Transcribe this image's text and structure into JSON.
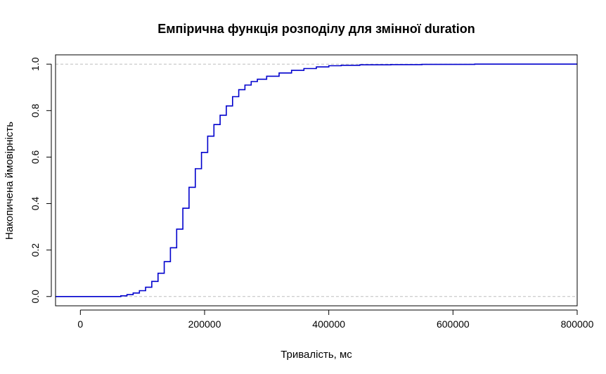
{
  "chart_data": {
    "type": "line",
    "title": "Емпірична функція розподілу для змінної duration",
    "xlabel": "Тривалість, мс",
    "ylabel": "Накопичена ймовірність",
    "xlim": [
      -40000,
      800000
    ],
    "ylim": [
      -0.04,
      1.04
    ],
    "x_ticks": [
      0,
      200000,
      400000,
      600000,
      800000
    ],
    "x_tick_labels": [
      "0",
      "200000",
      "400000",
      "600000",
      "800000"
    ],
    "y_ticks": [
      0.0,
      0.2,
      0.4,
      0.6,
      0.8,
      1.0
    ],
    "y_tick_labels": [
      "0.0",
      "0.2",
      "0.4",
      "0.6",
      "0.8",
      "1.0"
    ],
    "reference_lines": [
      0,
      1
    ],
    "grid": false,
    "line_color": "#0000cd",
    "reference_line_color": "#bebebe",
    "series": [
      {
        "x": [
          -40000,
          0,
          50000,
          65000,
          75000,
          85000,
          95000,
          105000,
          115000,
          125000,
          135000,
          145000,
          155000,
          165000,
          175000,
          185000,
          195000,
          205000,
          215000,
          225000,
          235000,
          245000,
          255000,
          265000,
          275000,
          285000,
          300000,
          320000,
          340000,
          360000,
          380000,
          400000,
          420000,
          450000,
          500000,
          550000,
          600000,
          635000,
          700000,
          800000
        ],
        "y": [
          0,
          0,
          0,
          0.003,
          0.008,
          0.015,
          0.025,
          0.04,
          0.065,
          0.1,
          0.15,
          0.21,
          0.29,
          0.38,
          0.47,
          0.55,
          0.62,
          0.69,
          0.74,
          0.78,
          0.82,
          0.86,
          0.89,
          0.91,
          0.925,
          0.935,
          0.948,
          0.962,
          0.973,
          0.981,
          0.988,
          0.993,
          0.995,
          0.997,
          0.998,
          0.999,
          0.999,
          1,
          1,
          1
        ]
      }
    ]
  }
}
